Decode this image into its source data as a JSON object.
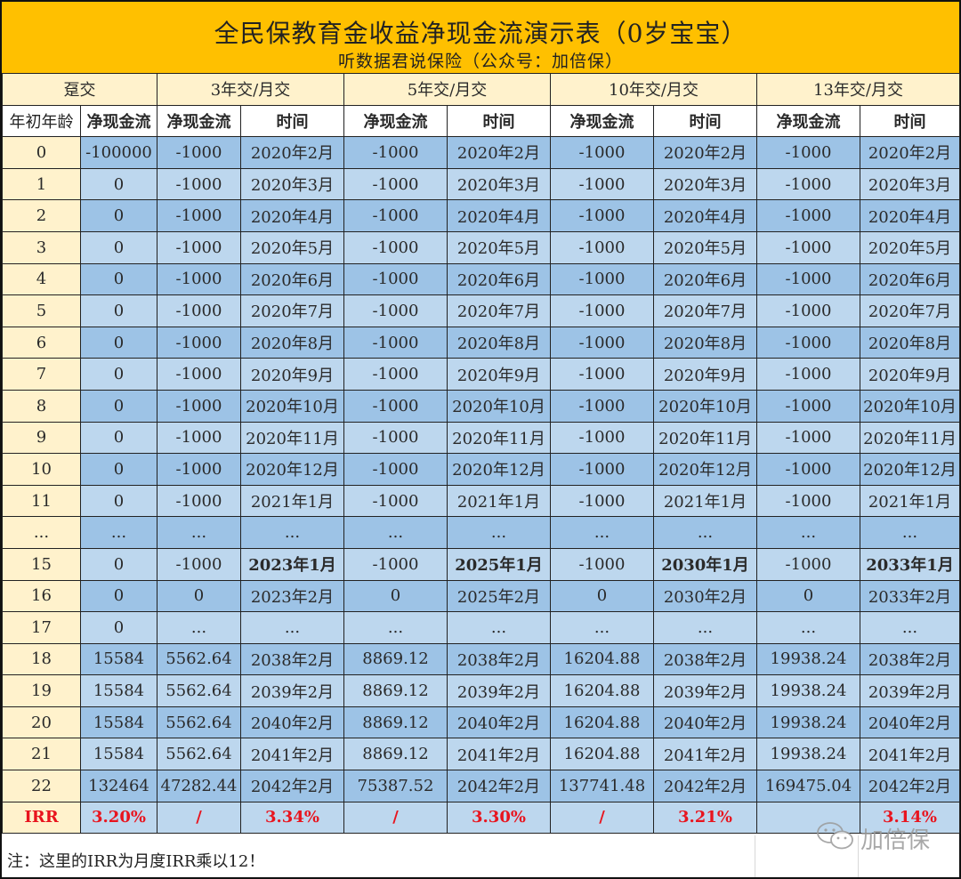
{
  "header": {
    "title": "全民保教育金收益净现金流演示表（0岁宝宝）",
    "subtitle": "听数据君说保险（公众号：加倍保）"
  },
  "groups": {
    "lump": "趸交",
    "g3": "3年交/月交",
    "g5": "5年交/月交",
    "g10": "10年交/月交",
    "g13": "13年交/月交"
  },
  "columns": {
    "age": "年初年龄",
    "cashflow": "净现金流",
    "time": "时间"
  },
  "rows": [
    {
      "age": "0",
      "lump": "-100000",
      "c3": "-1000",
      "t3": "2020年2月",
      "c5": "-1000",
      "t5": "2020年2月",
      "c10": "-1000",
      "t10": "2020年2月",
      "c13": "-1000",
      "t13": "2020年2月"
    },
    {
      "age": "1",
      "lump": "0",
      "c3": "-1000",
      "t3": "2020年3月",
      "c5": "-1000",
      "t5": "2020年3月",
      "c10": "-1000",
      "t10": "2020年3月",
      "c13": "-1000",
      "t13": "2020年3月"
    },
    {
      "age": "2",
      "lump": "0",
      "c3": "-1000",
      "t3": "2020年4月",
      "c5": "-1000",
      "t5": "2020年4月",
      "c10": "-1000",
      "t10": "2020年4月",
      "c13": "-1000",
      "t13": "2020年4月"
    },
    {
      "age": "3",
      "lump": "0",
      "c3": "-1000",
      "t3": "2020年5月",
      "c5": "-1000",
      "t5": "2020年5月",
      "c10": "-1000",
      "t10": "2020年5月",
      "c13": "-1000",
      "t13": "2020年5月"
    },
    {
      "age": "4",
      "lump": "0",
      "c3": "-1000",
      "t3": "2020年6月",
      "c5": "-1000",
      "t5": "2020年6月",
      "c10": "-1000",
      "t10": "2020年6月",
      "c13": "-1000",
      "t13": "2020年6月"
    },
    {
      "age": "5",
      "lump": "0",
      "c3": "-1000",
      "t3": "2020年7月",
      "c5": "-1000",
      "t5": "2020年7月",
      "c10": "-1000",
      "t10": "2020年7月",
      "c13": "-1000",
      "t13": "2020年7月"
    },
    {
      "age": "6",
      "lump": "0",
      "c3": "-1000",
      "t3": "2020年8月",
      "c5": "-1000",
      "t5": "2020年8月",
      "c10": "-1000",
      "t10": "2020年8月",
      "c13": "-1000",
      "t13": "2020年8月"
    },
    {
      "age": "7",
      "lump": "0",
      "c3": "-1000",
      "t3": "2020年9月",
      "c5": "-1000",
      "t5": "2020年9月",
      "c10": "-1000",
      "t10": "2020年9月",
      "c13": "-1000",
      "t13": "2020年9月"
    },
    {
      "age": "8",
      "lump": "0",
      "c3": "-1000",
      "t3": "2020年10月",
      "c5": "-1000",
      "t5": "2020年10月",
      "c10": "-1000",
      "t10": "2020年10月",
      "c13": "-1000",
      "t13": "2020年10月"
    },
    {
      "age": "9",
      "lump": "0",
      "c3": "-1000",
      "t3": "2020年11月",
      "c5": "-1000",
      "t5": "2020年11月",
      "c10": "-1000",
      "t10": "2020年11月",
      "c13": "-1000",
      "t13": "2020年11月"
    },
    {
      "age": "10",
      "lump": "0",
      "c3": "-1000",
      "t3": "2020年12月",
      "c5": "-1000",
      "t5": "2020年12月",
      "c10": "-1000",
      "t10": "2020年12月",
      "c13": "-1000",
      "t13": "2020年12月"
    },
    {
      "age": "11",
      "lump": "0",
      "c3": "-1000",
      "t3": "2021年1月",
      "c5": "-1000",
      "t5": "2021年1月",
      "c10": "-1000",
      "t10": "2021年1月",
      "c13": "-1000",
      "t13": "2021年1月"
    },
    {
      "age": "...",
      "lump": "...",
      "c3": "...",
      "t3": "...",
      "c5": "...",
      "t5": "...",
      "c10": "...",
      "t10": "...",
      "c13": "...",
      "t13": "..."
    },
    {
      "age": "15",
      "lump": "0",
      "c3": "-1000",
      "t3": "2023年1月",
      "c5": "-1000",
      "t5": "2025年1月",
      "c10": "-1000",
      "t10": "2030年1月",
      "c13": "-1000",
      "t13": "2033年1月"
    },
    {
      "age": "16",
      "lump": "0",
      "c3": "0",
      "t3": "2023年2月",
      "c5": "0",
      "t5": "2025年2月",
      "c10": "0",
      "t10": "2030年2月",
      "c13": "0",
      "t13": "2033年2月"
    },
    {
      "age": "17",
      "lump": "0",
      "c3": "...",
      "t3": "...",
      "c5": "...",
      "t5": "...",
      "c10": "...",
      "t10": "...",
      "c13": "...",
      "t13": "..."
    },
    {
      "age": "18",
      "lump": "15584",
      "c3": "5562.64",
      "t3": "2038年2月",
      "c5": "8869.12",
      "t5": "2038年2月",
      "c10": "16204.88",
      "t10": "2038年2月",
      "c13": "19938.24",
      "t13": "2038年2月"
    },
    {
      "age": "19",
      "lump": "15584",
      "c3": "5562.64",
      "t3": "2039年2月",
      "c5": "8869.12",
      "t5": "2039年2月",
      "c10": "16204.88",
      "t10": "2039年2月",
      "c13": "19938.24",
      "t13": "2039年2月"
    },
    {
      "age": "20",
      "lump": "15584",
      "c3": "5562.64",
      "t3": "2040年2月",
      "c5": "8869.12",
      "t5": "2040年2月",
      "c10": "16204.88",
      "t10": "2040年2月",
      "c13": "19938.24",
      "t13": "2040年2月"
    },
    {
      "age": "21",
      "lump": "15584",
      "c3": "5562.64",
      "t3": "2041年2月",
      "c5": "8869.12",
      "t5": "2041年2月",
      "c10": "16204.88",
      "t10": "2041年2月",
      "c13": "19938.24",
      "t13": "2041年2月"
    },
    {
      "age": "22",
      "lump": "132464",
      "c3": "47282.44",
      "t3": "2042年2月",
      "c5": "75387.52",
      "t5": "2042年2月",
      "c10": "137741.48",
      "t10": "2042年2月",
      "c13": "169475.04",
      "t13": "2042年2月"
    }
  ],
  "irr": {
    "label": "IRR",
    "lump": "3.20%",
    "c3": "/",
    "t3": "3.34%",
    "c5": "/",
    "t5": "3.30%",
    "c10": "/",
    "t10": "3.21%",
    "c13": "",
    "t13": "3.14%"
  },
  "note": "注：这里的IRR为月度IRR乘以12！",
  "watermark": "加倍保",
  "colors": {
    "title_band": "#FFC000",
    "header_cream": "#FFF2CC",
    "row_dark": "#9DC3E6",
    "row_light": "#BDD7EE",
    "accent_red": "#E8141E"
  }
}
